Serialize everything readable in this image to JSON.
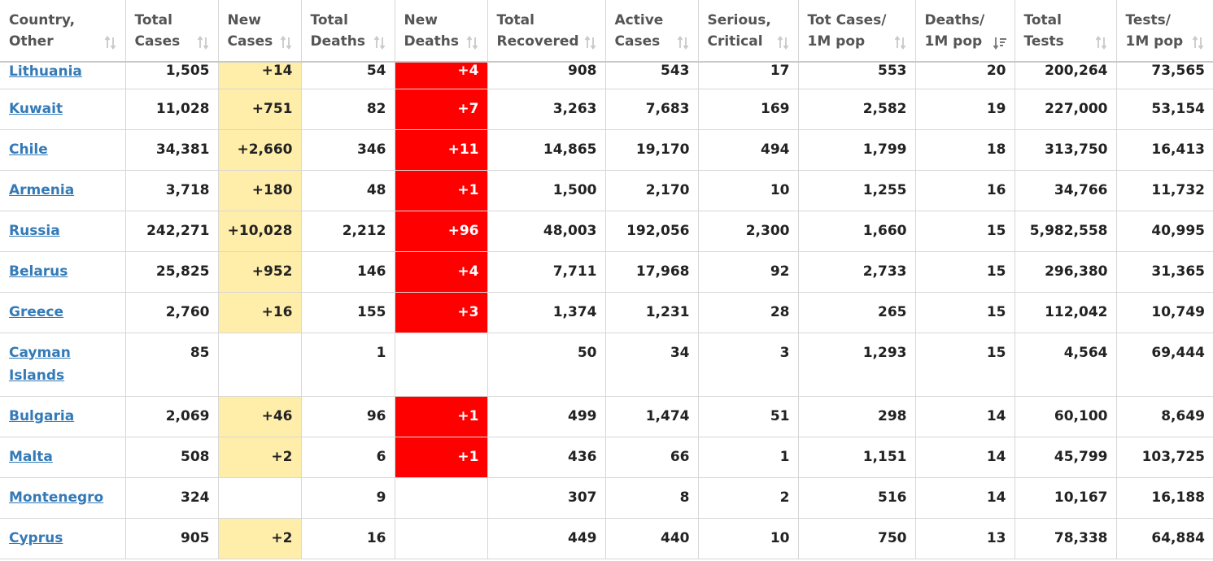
{
  "colors": {
    "link": "#337ab7",
    "new_cases_bg": "#ffeeaa",
    "new_deaths_bg": "#ff0000",
    "header_text": "#555555"
  },
  "columns": [
    {
      "line1": "Country,",
      "line2": "Other",
      "sort_icon": "sort-both-icon"
    },
    {
      "line1": "Total",
      "line2": "Cases",
      "sort_icon": "sort-both-icon"
    },
    {
      "line1": "New",
      "line2": "Cases",
      "sort_icon": "sort-both-icon"
    },
    {
      "line1": "Total",
      "line2": "Deaths",
      "sort_icon": "sort-both-icon"
    },
    {
      "line1": "New",
      "line2": "Deaths",
      "sort_icon": "sort-both-icon"
    },
    {
      "line1": "Total",
      "line2": "Recovered",
      "sort_icon": "sort-both-icon"
    },
    {
      "line1": "Active",
      "line2": "Cases",
      "sort_icon": "sort-both-icon"
    },
    {
      "line1": "Serious,",
      "line2": "Critical",
      "sort_icon": "sort-both-icon"
    },
    {
      "line1": "Tot Cases/",
      "line2": "1M pop",
      "sort_icon": "sort-both-icon"
    },
    {
      "line1": "Deaths/",
      "line2": "1M pop",
      "sort_icon": "sort-desc-icon"
    },
    {
      "line1": "Total",
      "line2": "Tests",
      "sort_icon": "sort-both-icon"
    },
    {
      "line1": "Tests/",
      "line2": "1M pop",
      "sort_icon": "sort-both-icon"
    }
  ],
  "rows": [
    {
      "country": "Lithuania",
      "total_cases": "1,505",
      "new_cases": "+14",
      "total_deaths": "54",
      "new_deaths": "+4",
      "total_recovered": "908",
      "active_cases": "543",
      "serious_critical": "17",
      "tot_cases_per_1m": "553",
      "deaths_per_1m": "20",
      "total_tests": "200,264",
      "tests_per_1m": "73,565"
    },
    {
      "country": "Kuwait",
      "total_cases": "11,028",
      "new_cases": "+751",
      "total_deaths": "82",
      "new_deaths": "+7",
      "total_recovered": "3,263",
      "active_cases": "7,683",
      "serious_critical": "169",
      "tot_cases_per_1m": "2,582",
      "deaths_per_1m": "19",
      "total_tests": "227,000",
      "tests_per_1m": "53,154"
    },
    {
      "country": "Chile",
      "total_cases": "34,381",
      "new_cases": "+2,660",
      "total_deaths": "346",
      "new_deaths": "+11",
      "total_recovered": "14,865",
      "active_cases": "19,170",
      "serious_critical": "494",
      "tot_cases_per_1m": "1,799",
      "deaths_per_1m": "18",
      "total_tests": "313,750",
      "tests_per_1m": "16,413"
    },
    {
      "country": "Armenia",
      "total_cases": "3,718",
      "new_cases": "+180",
      "total_deaths": "48",
      "new_deaths": "+1",
      "total_recovered": "1,500",
      "active_cases": "2,170",
      "serious_critical": "10",
      "tot_cases_per_1m": "1,255",
      "deaths_per_1m": "16",
      "total_tests": "34,766",
      "tests_per_1m": "11,732"
    },
    {
      "country": "Russia",
      "total_cases": "242,271",
      "new_cases": "+10,028",
      "total_deaths": "2,212",
      "new_deaths": "+96",
      "total_recovered": "48,003",
      "active_cases": "192,056",
      "serious_critical": "2,300",
      "tot_cases_per_1m": "1,660",
      "deaths_per_1m": "15",
      "total_tests": "5,982,558",
      "tests_per_1m": "40,995"
    },
    {
      "country": "Belarus",
      "total_cases": "25,825",
      "new_cases": "+952",
      "total_deaths": "146",
      "new_deaths": "+4",
      "total_recovered": "7,711",
      "active_cases": "17,968",
      "serious_critical": "92",
      "tot_cases_per_1m": "2,733",
      "deaths_per_1m": "15",
      "total_tests": "296,380",
      "tests_per_1m": "31,365"
    },
    {
      "country": "Greece",
      "total_cases": "2,760",
      "new_cases": "+16",
      "total_deaths": "155",
      "new_deaths": "+3",
      "total_recovered": "1,374",
      "active_cases": "1,231",
      "serious_critical": "28",
      "tot_cases_per_1m": "265",
      "deaths_per_1m": "15",
      "total_tests": "112,042",
      "tests_per_1m": "10,749"
    },
    {
      "country": "Cayman Islands",
      "total_cases": "85",
      "new_cases": "",
      "total_deaths": "1",
      "new_deaths": "",
      "total_recovered": "50",
      "active_cases": "34",
      "serious_critical": "3",
      "tot_cases_per_1m": "1,293",
      "deaths_per_1m": "15",
      "total_tests": "4,564",
      "tests_per_1m": "69,444"
    },
    {
      "country": "Bulgaria",
      "total_cases": "2,069",
      "new_cases": "+46",
      "total_deaths": "96",
      "new_deaths": "+1",
      "total_recovered": "499",
      "active_cases": "1,474",
      "serious_critical": "51",
      "tot_cases_per_1m": "298",
      "deaths_per_1m": "14",
      "total_tests": "60,100",
      "tests_per_1m": "8,649"
    },
    {
      "country": "Malta",
      "total_cases": "508",
      "new_cases": "+2",
      "total_deaths": "6",
      "new_deaths": "+1",
      "total_recovered": "436",
      "active_cases": "66",
      "serious_critical": "1",
      "tot_cases_per_1m": "1,151",
      "deaths_per_1m": "14",
      "total_tests": "45,799",
      "tests_per_1m": "103,725"
    },
    {
      "country": "Montenegro",
      "total_cases": "324",
      "new_cases": "",
      "total_deaths": "9",
      "new_deaths": "",
      "total_recovered": "307",
      "active_cases": "8",
      "serious_critical": "2",
      "tot_cases_per_1m": "516",
      "deaths_per_1m": "14",
      "total_tests": "10,167",
      "tests_per_1m": "16,188"
    },
    {
      "country": "Cyprus",
      "total_cases": "905",
      "new_cases": "+2",
      "total_deaths": "16",
      "new_deaths": "",
      "total_recovered": "449",
      "active_cases": "440",
      "serious_critical": "10",
      "tot_cases_per_1m": "750",
      "deaths_per_1m": "13",
      "total_tests": "78,338",
      "tests_per_1m": "64,884"
    }
  ]
}
